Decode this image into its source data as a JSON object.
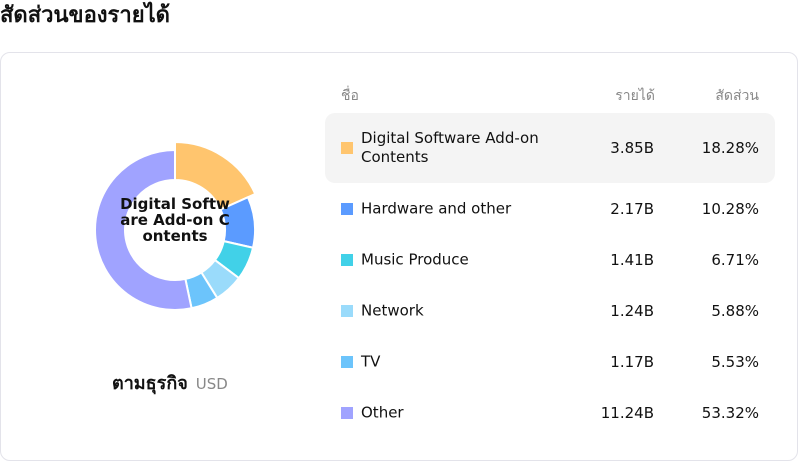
{
  "page_title": "สัดส่วนของรายได้",
  "segment": {
    "label": "ตามธุรกิจ",
    "unit": "USD"
  },
  "center_label": "Digital Software Add-on Contents",
  "headers": {
    "name": "ชื่อ",
    "revenue": "รายได้",
    "share": "สัดส่วน"
  },
  "rows": [
    {
      "name": "Digital Software Add-on Contents",
      "revenue": "3.85B",
      "share": "18.28%",
      "color": "#FFC56E",
      "selected": true
    },
    {
      "name": "Hardware and other",
      "revenue": "2.17B",
      "share": "10.28%",
      "color": "#5B9BFF"
    },
    {
      "name": "Music Produce",
      "revenue": "1.41B",
      "share": "6.71%",
      "color": "#41D1E8"
    },
    {
      "name": "Network",
      "revenue": "1.24B",
      "share": "5.88%",
      "color": "#9ADBFB"
    },
    {
      "name": "TV",
      "revenue": "1.17B",
      "share": "5.53%",
      "color": "#6CC4FB"
    },
    {
      "name": "Other",
      "revenue": "11.24B",
      "share": "53.32%",
      "color": "#A0A3FF"
    }
  ],
  "chart_data": {
    "type": "pie",
    "categories": [
      "Digital Software Add-on Contents",
      "Hardware and other",
      "Music Produce",
      "Network",
      "TV",
      "Other"
    ],
    "values": [
      18.28,
      10.28,
      6.71,
      5.88,
      5.53,
      53.32
    ],
    "colors": [
      "#FFC56E",
      "#5B9BFF",
      "#41D1E8",
      "#9ADBFB",
      "#6CC4FB",
      "#A0A3FF"
    ],
    "donut": true,
    "highlighted": "Digital Software Add-on Contents"
  }
}
